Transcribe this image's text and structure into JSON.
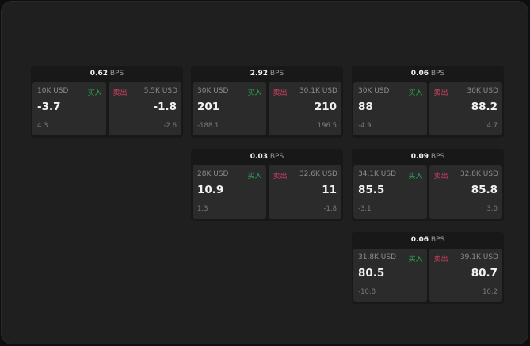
{
  "widgets": [
    {
      "bps": "0.62",
      "bps_unit": "BPS",
      "bid_size": "10K USD",
      "buy_label": "买入",
      "bid": "-3.7",
      "bid_change": "4.3",
      "sell_label": "卖出",
      "ask_size": "5.5K USD",
      "ask": "-1.8",
      "ask_change": "-2.6"
    },
    {
      "bps": "2.92",
      "bps_unit": "BPS",
      "bid_size": "30K USD",
      "buy_label": "买入",
      "bid": "201",
      "bid_change": "-188.1",
      "sell_label": "卖出",
      "ask_size": "30.1K USD",
      "ask": "210",
      "ask_change": "196.5"
    },
    {
      "bps": "0.06",
      "bps_unit": "BPS",
      "bid_size": "30K USD",
      "buy_label": "买入",
      "bid": "88",
      "bid_change": "-4.9",
      "sell_label": "卖出",
      "ask_size": "30K USD",
      "ask": "88.2",
      "ask_change": "4.7"
    },
    {
      "bps": "0.03",
      "bps_unit": "BPS",
      "bid_size": "28K USD",
      "buy_label": "买入",
      "bid": "10.9",
      "bid_change": "1.3",
      "sell_label": "卖出",
      "ask_size": "32.6K USD",
      "ask": "11",
      "ask_change": "-1.8"
    },
    {
      "bps": "0.09",
      "bps_unit": "BPS",
      "bid_size": "34.1K USD",
      "buy_label": "买入",
      "bid": "85.5",
      "bid_change": "-3.1",
      "sell_label": "卖出",
      "ask_size": "32.8K USD",
      "ask": "85.8",
      "ask_change": "3.0"
    },
    {
      "bps": "0.06",
      "bps_unit": "BPS",
      "bid_size": "31.8K USD",
      "buy_label": "买入",
      "bid": "80.5",
      "bid_change": "-10.8",
      "sell_label": "卖出",
      "ask_size": "39.1K USD",
      "ask": "80.7",
      "ask_change": "10.2"
    }
  ],
  "colors": {
    "buy": "#2ea85a",
    "sell": "#d8406a",
    "background": "#1f1f1f",
    "cell": "#2b2b2b"
  }
}
